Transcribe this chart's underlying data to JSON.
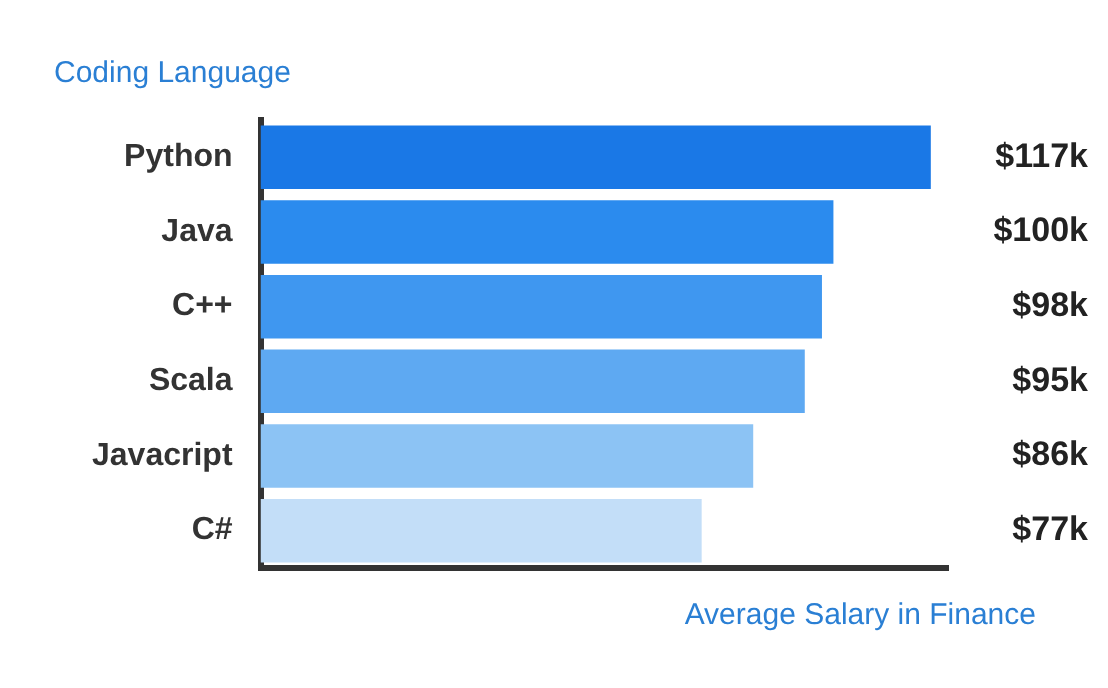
{
  "chart_data": {
    "type": "bar",
    "orientation": "horizontal",
    "tick_labels": "y",
    "ylabel": "Coding Language",
    "xlabel": "Average Salary in Finance",
    "categories": [
      "Python",
      "Java",
      "C++",
      "Scala",
      "Javacript",
      "C#"
    ],
    "values": [
      117,
      100,
      98,
      95,
      86,
      77
    ],
    "colors": [
      "#1a78e6",
      "#2b8bee",
      "#3f97f0",
      "#5ea9f2",
      "#8cc3f4",
      "#c3def8"
    ],
    "value_labels": [
      "$117k",
      "$100k",
      "$98k",
      "$95k",
      "$86k",
      "$77k"
    ]
  }
}
